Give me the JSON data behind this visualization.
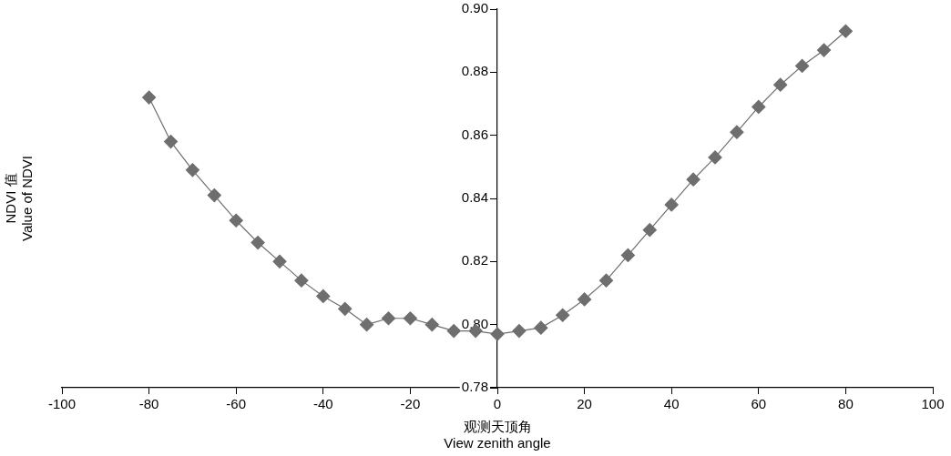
{
  "chart_data": {
    "type": "line",
    "xlabel": "观测天顶角\nView zenith angle",
    "ylabel": "NDVI 值\nValue of NDVI",
    "x": [
      -80,
      -75,
      -70,
      -65,
      -60,
      -55,
      -50,
      -45,
      -40,
      -35,
      -30,
      -25,
      -20,
      -15,
      -10,
      -5,
      0,
      5,
      10,
      15,
      20,
      25,
      30,
      35,
      40,
      45,
      50,
      55,
      60,
      65,
      70,
      75,
      80
    ],
    "series": [
      {
        "color": "#6e6e6e",
        "values": [
          0.872,
          0.858,
          0.849,
          0.841,
          0.833,
          0.826,
          0.82,
          0.814,
          0.809,
          0.805,
          0.8,
          0.802,
          0.802,
          0.8,
          0.798,
          0.798,
          0.797,
          0.798,
          0.799,
          0.803,
          0.808,
          0.814,
          0.822,
          0.83,
          0.838,
          0.846,
          0.853,
          0.861,
          0.869,
          0.876,
          0.882,
          0.887,
          0.893
        ]
      }
    ],
    "xlim": [
      -100,
      100
    ],
    "xticks": [
      -100,
      -80,
      -60,
      -40,
      -20,
      0,
      20,
      40,
      60,
      80,
      100
    ],
    "ylim": [
      0.78,
      0.9
    ],
    "yticks": [
      0.78,
      {
        "value": 0.8,
        "label": "0.80"
      },
      0.82,
      0.84,
      0.86,
      0.88,
      {
        "value": 0.9,
        "label": "0.90"
      }
    ],
    "marker": "diamond",
    "grid": false,
    "legend": false
  }
}
